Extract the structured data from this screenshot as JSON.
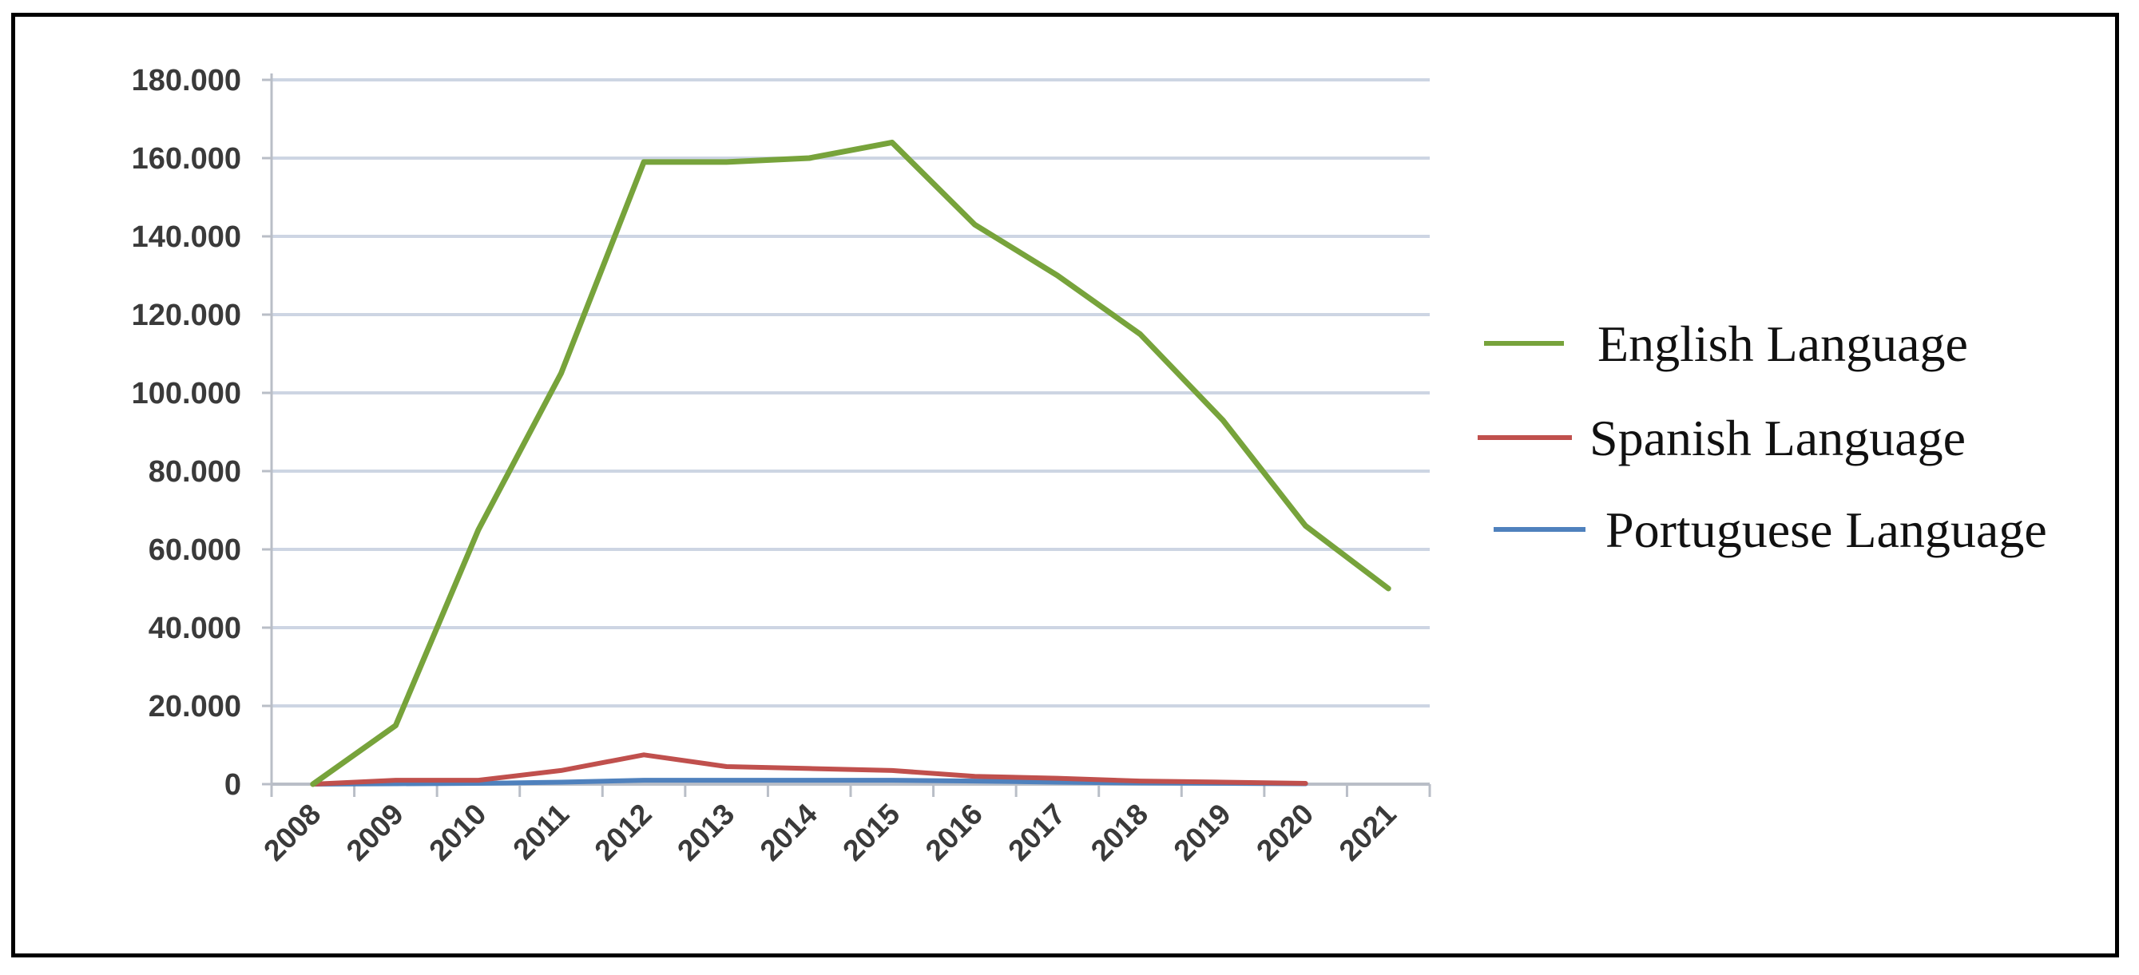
{
  "chart_data": {
    "type": "line",
    "title": "",
    "xlabel": "",
    "ylabel": "",
    "categories": [
      "2008",
      "2009",
      "2010",
      "2011",
      "2012",
      "2013",
      "2014",
      "2015",
      "2016",
      "2017",
      "2018",
      "2019",
      "2020",
      "2021"
    ],
    "y_ticks": [
      "0",
      "20.000",
      "40.000",
      "60.000",
      "80.000",
      "100.000",
      "120.000",
      "140.000",
      "160.000",
      "180.000"
    ],
    "ylim": [
      0,
      180000
    ],
    "grid": true,
    "legend_position": "right",
    "series": [
      {
        "name": "English Language",
        "color": "#77a33b",
        "values": [
          0,
          15000,
          65000,
          105000,
          159000,
          159000,
          160000,
          164000,
          143000,
          130000,
          115000,
          93000,
          66000,
          50000
        ]
      },
      {
        "name": "Spanish Language",
        "color": "#c0504d",
        "values": [
          0,
          1000,
          1000,
          3500,
          7500,
          4500,
          4000,
          3500,
          2000,
          1500,
          800,
          500,
          200,
          null
        ]
      },
      {
        "name": "Portuguese Language",
        "color": "#4f81bd",
        "values": [
          0,
          100,
          200,
          500,
          1000,
          1000,
          1000,
          1000,
          800,
          500,
          300,
          200,
          100,
          null
        ]
      }
    ]
  }
}
